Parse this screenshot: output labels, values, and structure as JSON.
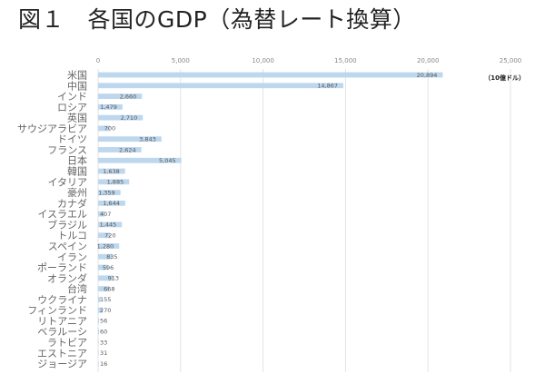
{
  "chart_data": {
    "type": "bar",
    "orientation": "horizontal",
    "title": "図１　各国のGDP（為替レート換算）",
    "unit_label": "（10億ドル）",
    "xlim": [
      0,
      25000
    ],
    "x_ticks": [
      "0",
      "5,000",
      "10,000",
      "15,000",
      "20,000",
      "25,000"
    ],
    "grid": true,
    "bar_color": "#bdd7ee",
    "categories": [
      "米国",
      "中国",
      "インド",
      "ロシア",
      "英国",
      "サウジアラビア",
      "ドイツ",
      "フランス",
      "日本",
      "韓国",
      "イタリア",
      "豪州",
      "カナダ",
      "イスラエル",
      "ブラジル",
      "トルコ",
      "スペイン",
      "イラン",
      "ポーランド",
      "オランダ",
      "台湾",
      "ウクライナ",
      "フィンランド",
      "リトアニア",
      "ベラルーシ",
      "ラトビア",
      "エストニア",
      "ジョージア"
    ],
    "values": [
      20894,
      14867,
      2660,
      1479,
      2710,
      700,
      3843,
      2624,
      5045,
      1638,
      1885,
      1359,
      1644,
      407,
      1445,
      720,
      1280,
      835,
      596,
      913,
      668,
      155,
      270,
      56,
      60,
      33,
      31,
      16
    ],
    "labels": [
      "20,894",
      "14,867",
      "2,660",
      "1,479",
      "2,710",
      "700",
      "3,843",
      "2,624",
      "5,045",
      "1,638",
      "1,885",
      "1,359",
      "1,644",
      "407",
      "1,445",
      "720",
      "1,280",
      "835",
      "596",
      "913",
      "668",
      "155",
      "270",
      "56",
      "60",
      "33",
      "31",
      "16"
    ]
  }
}
